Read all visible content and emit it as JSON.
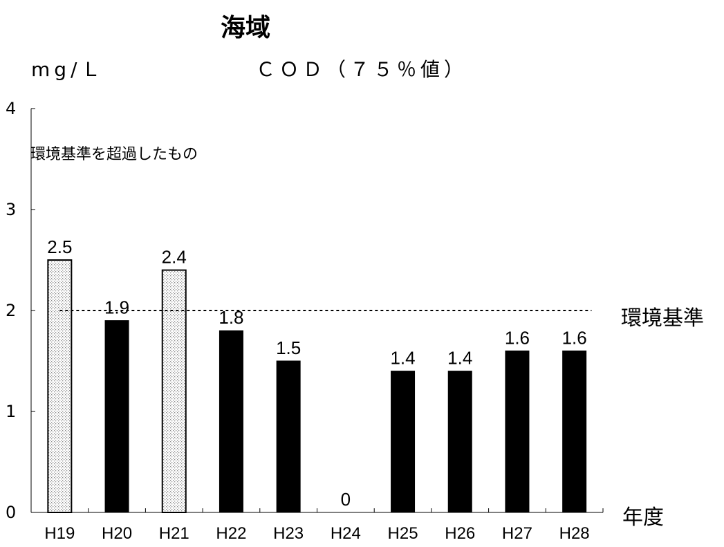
{
  "chart_data": {
    "type": "bar",
    "title": "海域",
    "subtitle": "ＣＯＤ（７５％値）",
    "ylabel": "mg/Ｌ",
    "xlabel": "年度",
    "categories": [
      "H19",
      "H20",
      "H21",
      "H22",
      "H23",
      "H24",
      "H25",
      "H26",
      "H27",
      "H28"
    ],
    "values": [
      2.5,
      1.9,
      2.4,
      1.8,
      1.5,
      0,
      1.4,
      1.4,
      1.6,
      1.6
    ],
    "value_labels": [
      "2.5",
      "1.9",
      "2.4",
      "1.8",
      "1.5",
      "0",
      "1.4",
      "1.4",
      "1.6",
      "1.6"
    ],
    "exceeded": [
      true,
      false,
      true,
      false,
      false,
      false,
      false,
      false,
      false,
      false
    ],
    "ylim": [
      0,
      4
    ],
    "yticks": [
      "0",
      "1",
      "2",
      "3",
      "4"
    ],
    "standard": {
      "value": 2,
      "label": "環境基準"
    },
    "exceed_note": "環境基準を超過したもの",
    "grid": false,
    "colors": {
      "bar": "#000000",
      "exceeded_fill": "#ffffff",
      "exceeded_dots": "#888888",
      "standard_line": "#000000"
    }
  }
}
